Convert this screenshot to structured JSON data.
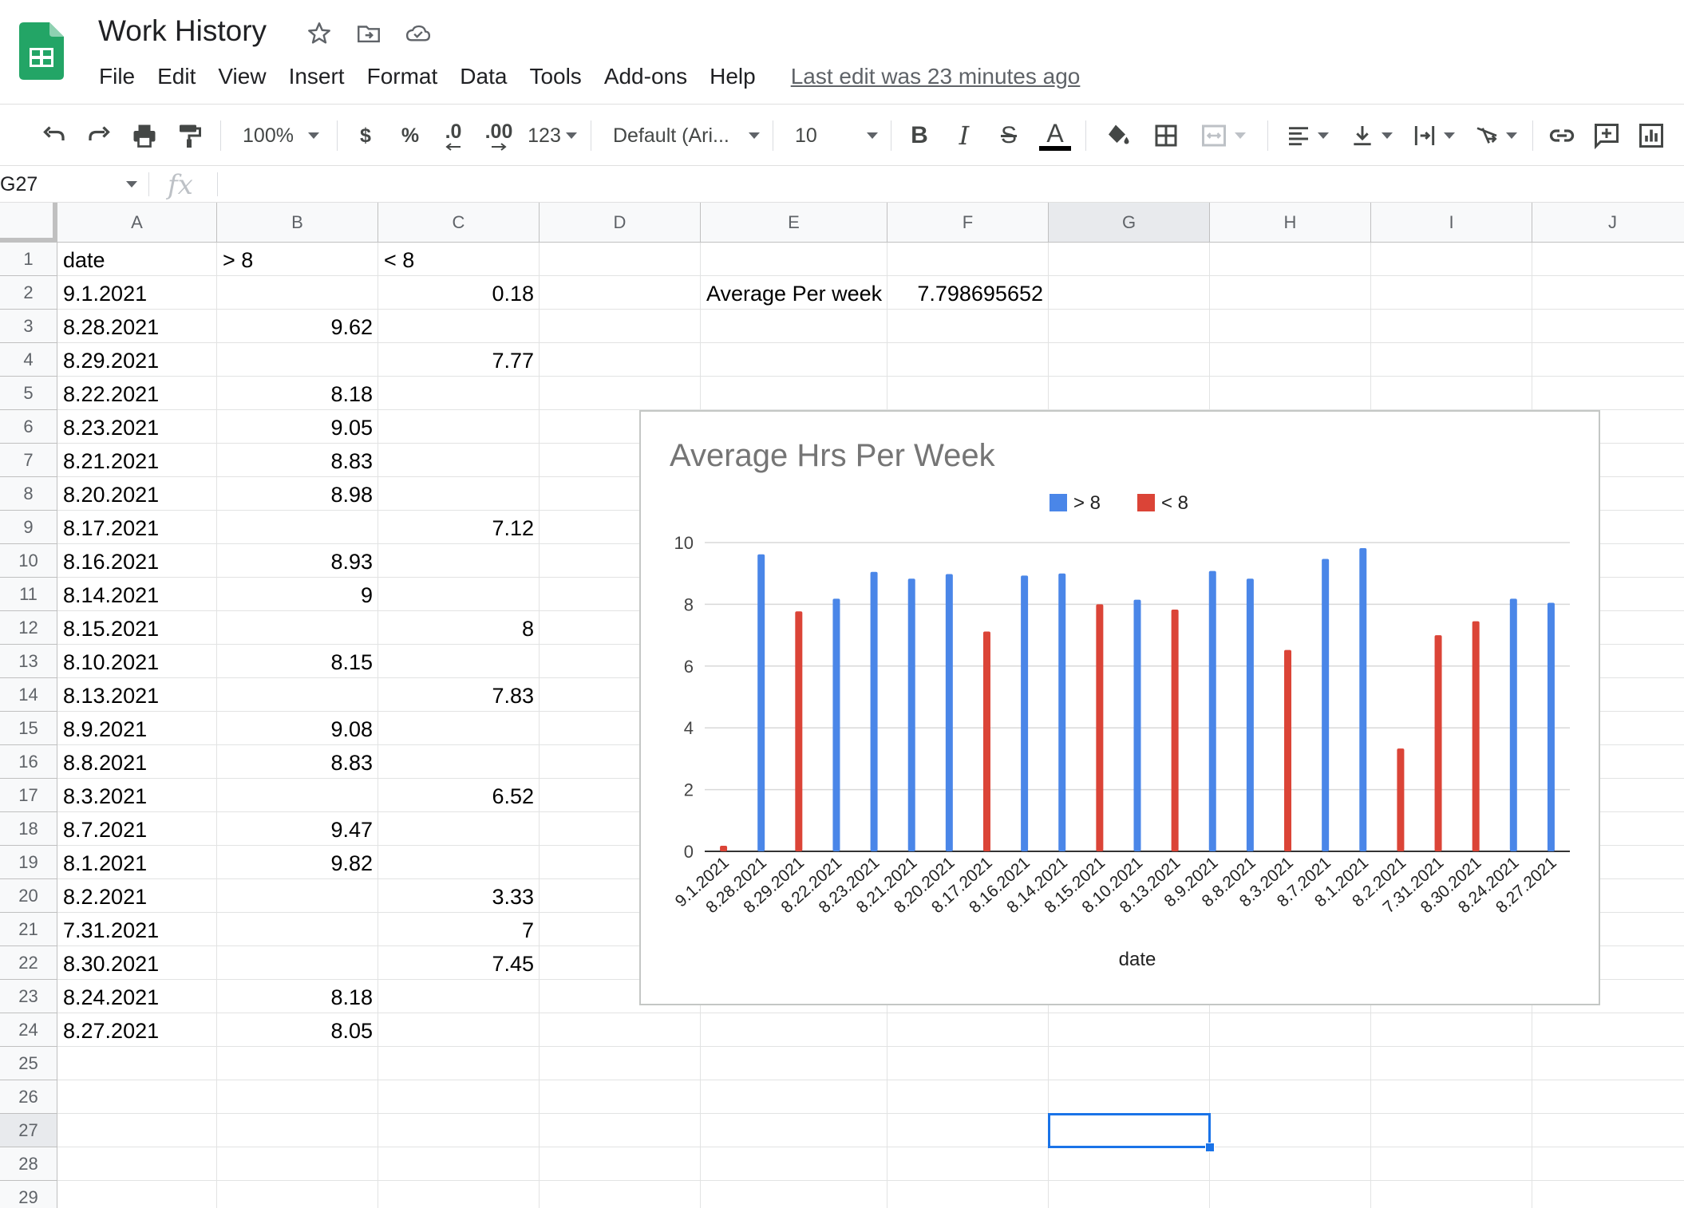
{
  "document": {
    "title": "Work History",
    "last_edit": "Last edit was 23 minutes ago"
  },
  "menu": [
    "File",
    "Edit",
    "View",
    "Insert",
    "Format",
    "Data",
    "Tools",
    "Add-ons",
    "Help"
  ],
  "toolbar": {
    "zoom": "100%",
    "currency": "$",
    "percent": "%",
    "decrease_decimal": ".0",
    "increase_decimal": ".00",
    "more_formats": "123",
    "font": "Default (Ari...",
    "font_size": "10",
    "bold": "B",
    "italic": "I",
    "strikethrough": "S",
    "text_color": "A"
  },
  "formula_bar": {
    "cell_ref": "G27",
    "fx": "fx",
    "value": ""
  },
  "sheet": {
    "columns": [
      "A",
      "B",
      "C",
      "D",
      "E",
      "F",
      "G",
      "H",
      "I",
      "J"
    ],
    "selected_column": "G",
    "rows": [
      "1",
      "2",
      "3",
      "4",
      "5",
      "6",
      "7",
      "8",
      "9",
      "10",
      "11",
      "12",
      "13",
      "14",
      "15",
      "16",
      "17",
      "18",
      "19",
      "20",
      "21",
      "22",
      "23",
      "24",
      "25",
      "26",
      "27",
      "28",
      "29"
    ],
    "header_row": {
      "A": "date",
      "B": "> 8",
      "C": "< 8"
    },
    "data": [
      {
        "A": "9.1.2021",
        "B": "",
        "C": "0.18"
      },
      {
        "A": "8.28.2021",
        "B": "9.62",
        "C": ""
      },
      {
        "A": "8.29.2021",
        "B": "",
        "C": "7.77"
      },
      {
        "A": "8.22.2021",
        "B": "8.18",
        "C": ""
      },
      {
        "A": "8.23.2021",
        "B": "9.05",
        "C": ""
      },
      {
        "A": "8.21.2021",
        "B": "8.83",
        "C": ""
      },
      {
        "A": "8.20.2021",
        "B": "8.98",
        "C": ""
      },
      {
        "A": "8.17.2021",
        "B": "",
        "C": "7.12"
      },
      {
        "A": "8.16.2021",
        "B": "8.93",
        "C": ""
      },
      {
        "A": "8.14.2021",
        "B": "9",
        "C": ""
      },
      {
        "A": "8.15.2021",
        "B": "",
        "C": "8"
      },
      {
        "A": "8.10.2021",
        "B": "8.15",
        "C": ""
      },
      {
        "A": "8.13.2021",
        "B": "",
        "C": "7.83"
      },
      {
        "A": "8.9.2021",
        "B": "9.08",
        "C": ""
      },
      {
        "A": "8.8.2021",
        "B": "8.83",
        "C": ""
      },
      {
        "A": "8.3.2021",
        "B": "",
        "C": "6.52"
      },
      {
        "A": "8.7.2021",
        "B": "9.47",
        "C": ""
      },
      {
        "A": "8.1.2021",
        "B": "9.82",
        "C": ""
      },
      {
        "A": "8.2.2021",
        "B": "",
        "C": "3.33"
      },
      {
        "A": "7.31.2021",
        "B": "",
        "C": "7"
      },
      {
        "A": "8.30.2021",
        "B": "",
        "C": "7.45"
      },
      {
        "A": "8.24.2021",
        "B": "8.18",
        "C": ""
      },
      {
        "A": "8.27.2021",
        "B": "8.05",
        "C": ""
      }
    ],
    "summary": {
      "label": "Average Per week",
      "value": "7.798695652"
    }
  },
  "chart_data": {
    "type": "bar",
    "title": "Average Hrs Per Week",
    "xlabel": "date",
    "ylabel": "",
    "ylim": [
      0,
      10
    ],
    "yticks": [
      "0",
      "2",
      "4",
      "6",
      "8",
      "10"
    ],
    "legend_position": "top",
    "grid": true,
    "categories": [
      "9.1.2021",
      "8.28.2021",
      "8.29.2021",
      "8.22.2021",
      "8.23.2021",
      "8.21.2021",
      "8.20.2021",
      "8.17.2021",
      "8.16.2021",
      "8.14.2021",
      "8.15.2021",
      "8.10.2021",
      "8.13.2021",
      "8.9.2021",
      "8.8.2021",
      "8.3.2021",
      "8.7.2021",
      "8.1.2021",
      "8.2.2021",
      "7.31.2021",
      "8.30.2021",
      "8.24.2021",
      "8.27.2021"
    ],
    "series": [
      {
        "name": "> 8",
        "color": "#4a86e8",
        "values": [
          null,
          9.62,
          null,
          8.18,
          9.05,
          8.83,
          8.98,
          null,
          8.93,
          9,
          null,
          8.15,
          null,
          9.08,
          8.83,
          null,
          9.47,
          9.82,
          null,
          null,
          null,
          8.18,
          8.05
        ]
      },
      {
        "name": "< 8",
        "color": "#db4437",
        "values": [
          0.18,
          null,
          7.77,
          null,
          null,
          null,
          null,
          7.12,
          null,
          null,
          8,
          null,
          7.83,
          null,
          null,
          6.52,
          null,
          null,
          3.33,
          7,
          7.45,
          null,
          null
        ]
      }
    ]
  }
}
